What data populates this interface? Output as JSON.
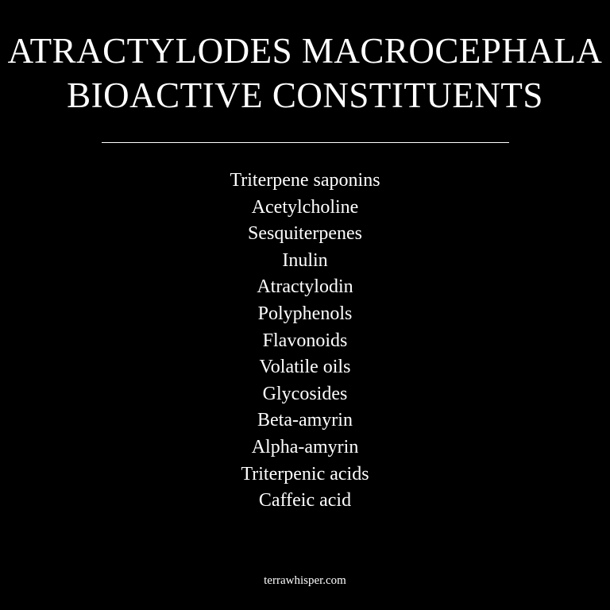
{
  "title": {
    "line1": "ATRACTYLODES MACROCEPHALA",
    "line2": "BIOACTIVE CONSTITUENTS"
  },
  "constituents": [
    "Triterpene saponins",
    "Acetylcholine",
    "Sesquiterpenes",
    "Inulin",
    "Atractylodin",
    "Polyphenols",
    "Flavonoids",
    "Volatile oils",
    "Glycosides",
    "Beta-amyrin",
    "Alpha-amyrin",
    "Triterpenic acids",
    "Caffeic acid"
  ],
  "footer": {
    "site": "terrawhisper.com"
  },
  "colors": {
    "background": "#000000",
    "text": "#ffffff"
  }
}
